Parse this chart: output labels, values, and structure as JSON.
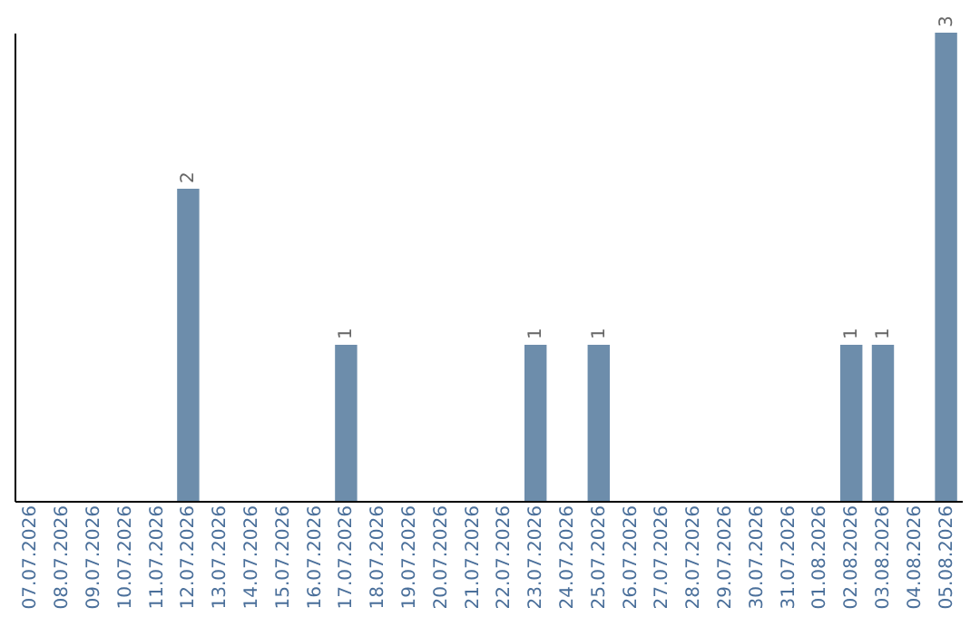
{
  "chart_data": {
    "type": "bar",
    "categories": [
      "07.07.2026",
      "08.07.2026",
      "09.07.2026",
      "10.07.2026",
      "11.07.2026",
      "12.07.2026",
      "13.07.2026",
      "14.07.2026",
      "15.07.2026",
      "16.07.2026",
      "17.07.2026",
      "18.07.2026",
      "19.07.2026",
      "20.07.2026",
      "21.07.2026",
      "22.07.2026",
      "23.07.2026",
      "24.07.2026",
      "25.07.2026",
      "26.07.2026",
      "27.07.2026",
      "28.07.2026",
      "29.07.2026",
      "30.07.2026",
      "31.07.2026",
      "01.08.2026",
      "02.08.2026",
      "03.08.2026",
      "04.08.2026",
      "05.08.2026"
    ],
    "values": [
      0,
      0,
      0,
      0,
      0,
      2,
      0,
      0,
      0,
      0,
      1,
      0,
      0,
      0,
      0,
      0,
      1,
      0,
      1,
      0,
      0,
      0,
      0,
      0,
      0,
      0,
      1,
      1,
      0,
      3
    ],
    "value_labels": [
      null,
      null,
      null,
      null,
      null,
      "2",
      null,
      null,
      null,
      null,
      "1",
      null,
      null,
      null,
      null,
      null,
      "1",
      null,
      "1",
      null,
      null,
      null,
      null,
      null,
      null,
      null,
      "1",
      "1",
      null,
      "3"
    ],
    "color": "#6d8dab",
    "tick_labels": "x",
    "grid": false
  }
}
